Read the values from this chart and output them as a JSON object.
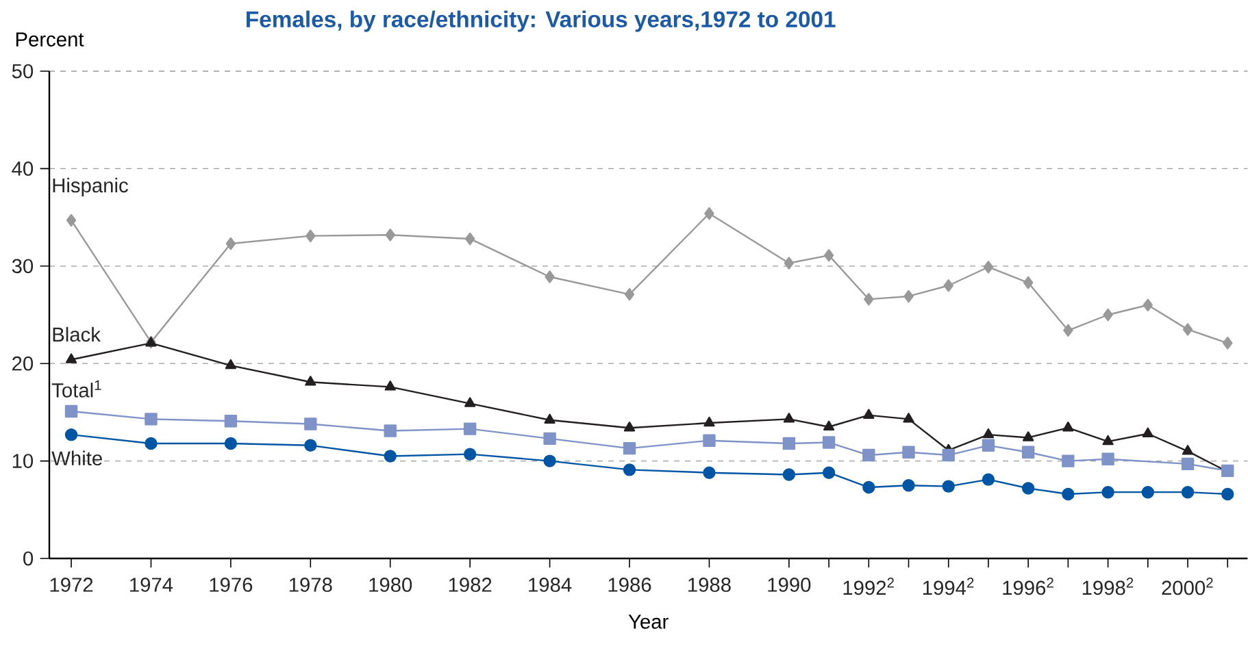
{
  "chart_data": {
    "type": "line",
    "title": "Females, by race/ethnicity: Various years,1972 to 2001",
    "xlabel": "Year",
    "ylabel": "Percent",
    "x": [
      1972,
      1974,
      1976,
      1978,
      1980,
      1982,
      1984,
      1986,
      1988,
      1990,
      1991,
      1992,
      1993,
      1994,
      1995,
      1996,
      1997,
      1998,
      1999,
      2000,
      2001
    ],
    "series": [
      {
        "name": "Hispanic",
        "color": "#999999",
        "marker": "diamond",
        "values": [
          34.7,
          22.2,
          32.3,
          33.1,
          33.2,
          32.8,
          28.9,
          27.1,
          35.4,
          30.3,
          31.1,
          26.6,
          26.9,
          28.0,
          29.9,
          28.3,
          23.4,
          25.0,
          26.0,
          23.5,
          22.1
        ]
      },
      {
        "name": "Black",
        "color": "#231f20",
        "marker": "triangle",
        "values": [
          20.4,
          22.1,
          19.8,
          18.1,
          17.6,
          15.9,
          14.2,
          13.4,
          13.9,
          14.3,
          13.5,
          14.7,
          14.3,
          11.1,
          12.7,
          12.4,
          13.4,
          12.0,
          12.8,
          11.0,
          8.9
        ]
      },
      {
        "name": "Total$^{1}$",
        "color": "#7f93c8",
        "marker": "square",
        "values": [
          15.1,
          14.3,
          14.1,
          13.8,
          13.1,
          13.3,
          12.3,
          11.3,
          12.1,
          11.8,
          11.9,
          10.6,
          10.9,
          10.6,
          11.6,
          10.9,
          10.0,
          10.2,
          null,
          9.7,
          9.0
        ]
      },
      {
        "name": "White",
        "color": "#0055a4",
        "marker": "circle",
        "values": [
          12.7,
          11.8,
          11.8,
          11.6,
          10.5,
          10.7,
          10.0,
          9.1,
          8.8,
          8.6,
          8.8,
          7.3,
          7.5,
          7.4,
          8.1,
          7.2,
          6.6,
          6.8,
          6.8,
          6.8,
          6.6
        ]
      }
    ],
    "xlim": [
      1971.45,
      2001.5
    ],
    "xticks": [
      1972,
      1974,
      1976,
      1978,
      1980,
      1982,
      1984,
      1986,
      1988,
      1990,
      {
        "value": 1991,
        "label": null
      },
      {
        "value": 1992,
        "label": "1992$^{2}$"
      },
      {
        "value": 1993,
        "label": null
      },
      {
        "value": 1994,
        "label": "1994$^{2}$"
      },
      {
        "value": 1995,
        "label": null
      },
      {
        "value": 1996,
        "label": "1996$^{2}$"
      },
      {
        "value": 1997,
        "label": null
      },
      {
        "value": 1998,
        "label": "1998$^{2}$"
      },
      {
        "value": 1999,
        "label": null
      },
      {
        "value": 2000,
        "label": "2000$^{2}$"
      },
      {
        "value": 2001,
        "label": null
      }
    ],
    "ylim": [
      0,
      50
    ],
    "yticks": [
      0,
      10,
      20,
      30,
      40,
      50
    ],
    "grid": "y",
    "line_style": "solid"
  }
}
